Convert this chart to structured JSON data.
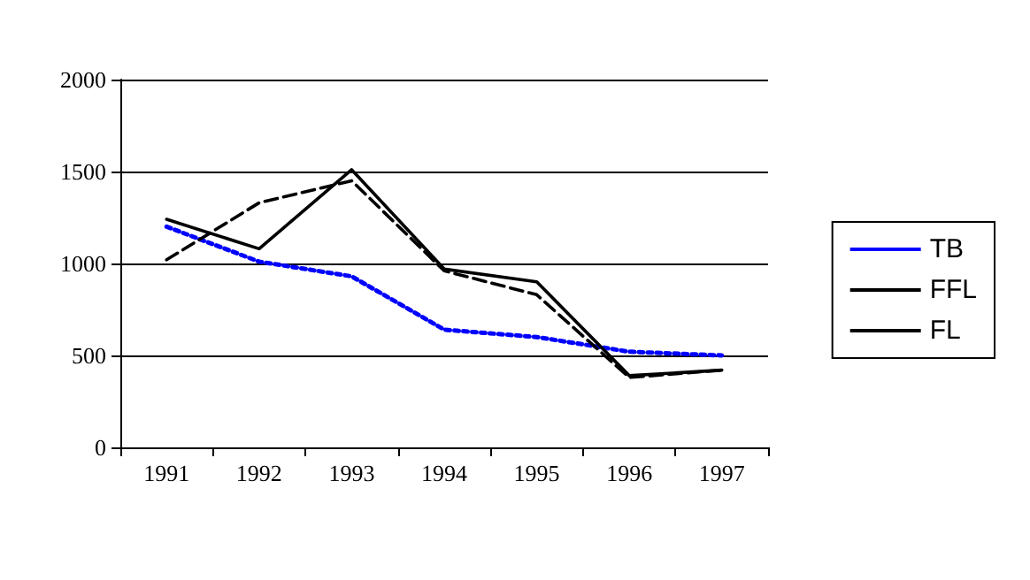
{
  "chart_data": {
    "type": "line",
    "categories": [
      "1991",
      "1992",
      "1993",
      "1994",
      "1995",
      "1996",
      "1997"
    ],
    "series": [
      {
        "name": "TB",
        "color": "#0000ff",
        "line_style": "dotted",
        "values": [
          1200,
          1010,
          930,
          640,
          600,
          520,
          500
        ]
      },
      {
        "name": "FFL",
        "color": "#000000",
        "line_style": "dashed",
        "values": [
          1020,
          1330,
          1450,
          960,
          830,
          380,
          420
        ]
      },
      {
        "name": "FL",
        "color": "#000000",
        "line_style": "solid",
        "values": [
          1240,
          1080,
          1510,
          970,
          900,
          390,
          420
        ]
      }
    ],
    "ylim": [
      0,
      2000
    ],
    "yticks": [
      0,
      500,
      1000,
      1500,
      2000
    ],
    "grid": "y",
    "legend": "right",
    "marker": "none"
  }
}
